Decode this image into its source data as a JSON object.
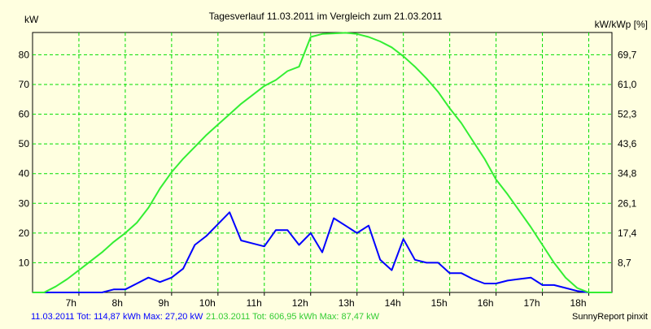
{
  "chart_data": {
    "type": "line",
    "title": "Tagesverlauf 11.03.2011 im Vergleich zum 21.03.2011",
    "ylabel_left": "kW",
    "ylabel_right": "kW/kWp [%]",
    "x_ticks": [
      "7h",
      "8h",
      "9h",
      "10h",
      "11h",
      "12h",
      "13h",
      "14h",
      "15h",
      "16h",
      "17h",
      "18h"
    ],
    "x_range": [
      6.0,
      18.5
    ],
    "y_left_ticks": [
      "10",
      "20",
      "30",
      "40",
      "50",
      "60",
      "70",
      "80"
    ],
    "y_right_ticks": [
      "8,7",
      "17,4",
      "26,1",
      "34,8",
      "43,6",
      "52,3",
      "61,0",
      "69,7"
    ],
    "y_right_values_at": [
      10,
      20,
      30,
      40,
      50,
      60,
      70,
      80
    ],
    "y_range": [
      0,
      87.5
    ],
    "grid": true,
    "background_color": "#ffffe0",
    "grid_color": "#00dd00",
    "series": [
      {
        "color": "#0000ff",
        "points": [
          [
            6.0,
            0
          ],
          [
            6.5,
            0
          ],
          [
            7.0,
            0
          ],
          [
            7.5,
            0
          ],
          [
            7.75,
            1
          ],
          [
            8.0,
            1
          ],
          [
            8.25,
            3
          ],
          [
            8.5,
            5
          ],
          [
            8.75,
            3.5
          ],
          [
            9.0,
            5
          ],
          [
            9.25,
            8
          ],
          [
            9.5,
            16
          ],
          [
            9.75,
            19
          ],
          [
            10.0,
            23
          ],
          [
            10.25,
            27
          ],
          [
            10.5,
            17.5
          ],
          [
            10.75,
            16.5
          ],
          [
            11.0,
            15.5
          ],
          [
            11.25,
            21
          ],
          [
            11.5,
            21
          ],
          [
            11.75,
            16
          ],
          [
            12.0,
            20
          ],
          [
            12.25,
            13.5
          ],
          [
            12.5,
            25
          ],
          [
            12.75,
            22.5
          ],
          [
            13.0,
            20
          ],
          [
            13.25,
            22.5
          ],
          [
            13.5,
            11
          ],
          [
            13.75,
            7.5
          ],
          [
            14.0,
            18
          ],
          [
            14.25,
            11
          ],
          [
            14.5,
            10
          ],
          [
            14.75,
            10
          ],
          [
            15.0,
            6.5
          ],
          [
            15.25,
            6.5
          ],
          [
            15.5,
            4.5
          ],
          [
            15.75,
            3
          ],
          [
            16.0,
            3
          ],
          [
            16.25,
            4
          ],
          [
            16.5,
            4.5
          ],
          [
            16.75,
            5
          ],
          [
            17.0,
            2.5
          ],
          [
            17.25,
            2.5
          ],
          [
            17.5,
            1.5
          ],
          [
            17.75,
            0.5
          ],
          [
            18.0,
            0
          ],
          [
            18.5,
            0
          ]
        ]
      },
      {
        "color": "#33ee33",
        "points": [
          [
            6.0,
            0
          ],
          [
            6.25,
            0
          ],
          [
            6.5,
            2
          ],
          [
            6.75,
            4.5
          ],
          [
            7.0,
            7.5
          ],
          [
            7.25,
            10.5
          ],
          [
            7.5,
            13.5
          ],
          [
            7.75,
            17
          ],
          [
            8.0,
            20
          ],
          [
            8.25,
            23.5
          ],
          [
            8.5,
            28.5
          ],
          [
            8.75,
            35
          ],
          [
            9.0,
            40.5
          ],
          [
            9.25,
            45
          ],
          [
            9.5,
            49
          ],
          [
            9.75,
            53
          ],
          [
            10.0,
            56.5
          ],
          [
            10.25,
            60
          ],
          [
            10.5,
            63.5
          ],
          [
            10.75,
            66.5
          ],
          [
            11.0,
            69.5
          ],
          [
            11.25,
            71.5
          ],
          [
            11.5,
            74.5
          ],
          [
            11.75,
            76
          ],
          [
            12.0,
            86
          ],
          [
            12.25,
            87
          ],
          [
            12.5,
            87.2
          ],
          [
            12.75,
            87.4
          ],
          [
            13.0,
            87
          ],
          [
            13.25,
            86
          ],
          [
            13.5,
            84.5
          ],
          [
            13.75,
            82.5
          ],
          [
            14.0,
            79.5
          ],
          [
            14.25,
            76
          ],
          [
            14.5,
            72
          ],
          [
            14.75,
            67.5
          ],
          [
            15.0,
            62
          ],
          [
            15.25,
            57
          ],
          [
            15.5,
            51
          ],
          [
            15.75,
            45
          ],
          [
            16.0,
            38
          ],
          [
            16.25,
            33
          ],
          [
            16.5,
            27.5
          ],
          [
            16.75,
            22
          ],
          [
            17.0,
            16
          ],
          [
            17.25,
            10
          ],
          [
            17.5,
            5
          ],
          [
            17.75,
            1.5
          ],
          [
            18.0,
            0
          ],
          [
            18.5,
            0
          ]
        ]
      }
    ]
  },
  "footer": {
    "series1_label": "11.03.2011 Tot: 114,87 kWh Max: 27,20 kW",
    "series2_label": "21.03.2011 Tot: 606,95 kWh Max: 87,47 kW",
    "credit": "SunnyReport pinxit"
  }
}
